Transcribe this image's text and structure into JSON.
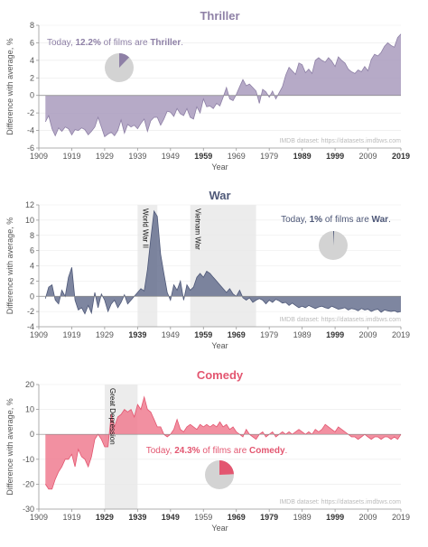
{
  "chart_data": [
    {
      "type": "area",
      "title": "Thriller",
      "color": "#a99bbd",
      "stroke": "#8e80a6",
      "xlabel": "Year",
      "ylabel": "Difference with average, %",
      "xlim": [
        1909,
        2019
      ],
      "ylim": [
        -6,
        8
      ],
      "xticks": [
        1909,
        1919,
        1929,
        1939,
        1949,
        1959,
        1969,
        1979,
        1989,
        1999,
        2009,
        2019
      ],
      "xticks_bold": [
        1959,
        1989,
        1999,
        2019
      ],
      "yticks": [
        -6,
        -4,
        -2,
        0,
        2,
        4,
        6,
        8
      ],
      "credit": "IMDB dataset: https://datasets.imdbws.com",
      "annotation": {
        "prefix": "Today, ",
        "pct": "12.2%",
        "middle": " of films are ",
        "genre": "Thriller",
        "suffix": "."
      },
      "pie_fraction": 0.122,
      "bands": [],
      "x": [
        1911,
        1912,
        1913,
        1914,
        1915,
        1916,
        1917,
        1918,
        1919,
        1920,
        1921,
        1922,
        1923,
        1924,
        1925,
        1926,
        1927,
        1928,
        1929,
        1930,
        1931,
        1932,
        1933,
        1934,
        1935,
        1936,
        1937,
        1938,
        1939,
        1940,
        1941,
        1942,
        1943,
        1944,
        1945,
        1946,
        1947,
        1948,
        1949,
        1950,
        1951,
        1952,
        1953,
        1954,
        1955,
        1956,
        1957,
        1958,
        1959,
        1960,
        1961,
        1962,
        1963,
        1964,
        1965,
        1966,
        1967,
        1968,
        1969,
        1970,
        1971,
        1972,
        1973,
        1974,
        1975,
        1976,
        1977,
        1978,
        1979,
        1980,
        1981,
        1982,
        1983,
        1984,
        1985,
        1986,
        1987,
        1988,
        1989,
        1990,
        1991,
        1992,
        1993,
        1994,
        1995,
        1996,
        1997,
        1998,
        1999,
        2000,
        2001,
        2002,
        2003,
        2004,
        2005,
        2006,
        2007,
        2008,
        2009,
        2010,
        2011,
        2012,
        2013,
        2014,
        2015,
        2016,
        2017,
        2018,
        2019
      ],
      "values": [
        -3.0,
        -2.3,
        -3.8,
        -4.6,
        -3.7,
        -4.1,
        -3.6,
        -3.8,
        -4.5,
        -3.9,
        -4.0,
        -3.7,
        -3.9,
        -4.5,
        -4.1,
        -3.6,
        -2.5,
        -3.6,
        -4.7,
        -4.4,
        -4.2,
        -4.6,
        -4.0,
        -2.8,
        -4.3,
        -3.3,
        -3.6,
        -3.4,
        -3.8,
        -3.2,
        -2.7,
        -4.1,
        -2.9,
        -2.5,
        -2.5,
        -3.4,
        -2.7,
        -1.8,
        -1.9,
        -2.4,
        -1.5,
        -2.1,
        -2.3,
        -1.5,
        -2.5,
        -2.7,
        -1.3,
        -2.0,
        -0.4,
        -1.3,
        -1.2,
        -1.5,
        -0.9,
        -1.2,
        -0.2,
        0.9,
        -0.4,
        -0.6,
        0.1,
        1.0,
        1.8,
        1.1,
        1.3,
        0.9,
        0.5,
        -0.9,
        0.7,
        0.4,
        -0.2,
        0.5,
        -0.4,
        0.3,
        1.0,
        2.3,
        3.2,
        2.8,
        2.4,
        3.7,
        3.5,
        2.6,
        3.0,
        2.5,
        4.0,
        4.3,
        4.0,
        3.8,
        4.3,
        3.9,
        3.3,
        4.4,
        4.0,
        3.7,
        3.0,
        2.7,
        2.5,
        2.9,
        2.7,
        3.3,
        2.8,
        4.1,
        4.7,
        4.5,
        4.9,
        5.6,
        6.0,
        5.7,
        5.5,
        6.6,
        7.0
      ]
    },
    {
      "type": "area",
      "title": "War",
      "color": "#67718f",
      "stroke": "#4e5878",
      "xlabel": "Year",
      "ylabel": "Difference with average, %",
      "xlim": [
        1909,
        2019
      ],
      "ylim": [
        -4,
        12
      ],
      "xticks": [
        1909,
        1919,
        1929,
        1939,
        1949,
        1959,
        1969,
        1979,
        1989,
        1999,
        2009,
        2019
      ],
      "xticks_bold": [
        1939,
        1959,
        1969,
        1999
      ],
      "yticks": [
        -4,
        -2,
        0,
        2,
        4,
        6,
        8,
        10,
        12
      ],
      "credit": "IMDB dataset: https://datasets.imdbws.com",
      "annotation": {
        "prefix": "Today, ",
        "pct": "1%",
        "middle": " of films are ",
        "genre": "War",
        "suffix": "."
      },
      "pie_fraction": 0.01,
      "bands": [
        {
          "label": "World War II",
          "start": 1939,
          "end": 1945
        },
        {
          "label": "Vietnam War",
          "start": 1955,
          "end": 1975
        }
      ],
      "x": [
        1911,
        1912,
        1913,
        1914,
        1915,
        1916,
        1917,
        1918,
        1919,
        1920,
        1921,
        1922,
        1923,
        1924,
        1925,
        1926,
        1927,
        1928,
        1929,
        1930,
        1931,
        1932,
        1933,
        1934,
        1935,
        1936,
        1937,
        1938,
        1939,
        1940,
        1941,
        1942,
        1943,
        1944,
        1945,
        1946,
        1947,
        1948,
        1949,
        1950,
        1951,
        1952,
        1953,
        1954,
        1955,
        1956,
        1957,
        1958,
        1959,
        1960,
        1961,
        1962,
        1963,
        1964,
        1965,
        1966,
        1967,
        1968,
        1969,
        1970,
        1971,
        1972,
        1973,
        1974,
        1975,
        1976,
        1977,
        1978,
        1979,
        1980,
        1981,
        1982,
        1983,
        1984,
        1985,
        1986,
        1987,
        1988,
        1989,
        1990,
        1991,
        1992,
        1993,
        1994,
        1995,
        1996,
        1997,
        1998,
        1999,
        2000,
        2001,
        2002,
        2003,
        2004,
        2005,
        2006,
        2007,
        2008,
        2009,
        2010,
        2011,
        2012,
        2013,
        2014,
        2015,
        2016,
        2017,
        2018,
        2019
      ],
      "values": [
        -0.3,
        1.2,
        1.5,
        -0.5,
        -1.0,
        0.8,
        0.0,
        2.5,
        3.8,
        -0.5,
        -1.8,
        -1.5,
        -2.3,
        -1.2,
        -2.2,
        0.5,
        -1.5,
        0.3,
        -0.5,
        -2.0,
        -1.0,
        -0.5,
        -1.5,
        -0.8,
        0.2,
        -1.0,
        -0.5,
        0.0,
        0.5,
        1.0,
        0.7,
        3.5,
        7.5,
        11.2,
        10.5,
        5.5,
        3.0,
        0.5,
        -0.5,
        1.5,
        0.8,
        2.0,
        -0.5,
        1.5,
        0.8,
        1.2,
        2.5,
        3.0,
        2.5,
        3.3,
        3.0,
        2.5,
        2.0,
        1.5,
        1.0,
        0.5,
        1.0,
        0.3,
        0.0,
        0.8,
        -0.2,
        -0.5,
        -0.2,
        -0.8,
        -0.5,
        -0.3,
        -0.5,
        -1.0,
        -0.5,
        -0.8,
        -0.4,
        -0.6,
        -0.9,
        -0.8,
        -1.2,
        -0.9,
        -1.2,
        -1.5,
        -1.3,
        -1.5,
        -1.2,
        -1.4,
        -1.6,
        -1.4,
        -1.3,
        -1.5,
        -1.6,
        -1.3,
        -1.5,
        -1.7,
        -1.6,
        -1.5,
        -1.8,
        -1.6,
        -1.7,
        -1.9,
        -1.6,
        -1.8,
        -1.7,
        -2.0,
        -1.8,
        -1.7,
        -2.1,
        -1.8,
        -1.9,
        -2.0,
        -1.9,
        -2.1,
        -2.0
      ]
    },
    {
      "type": "area",
      "title": "Comedy",
      "color": "#f07c90",
      "stroke": "#e35670",
      "xlabel": "Year",
      "ylabel": "Difference with average, %",
      "xlim": [
        1909,
        2019
      ],
      "ylim": [
        -30,
        20
      ],
      "xticks": [
        1909,
        1919,
        1929,
        1939,
        1949,
        1959,
        1969,
        1979,
        1989,
        1999,
        2009,
        2019
      ],
      "xticks_bold": [
        1929,
        1939,
        1949,
        1969,
        1979,
        1999
      ],
      "yticks": [
        -30,
        -20,
        -10,
        0,
        10,
        20
      ],
      "credit": "IMDB dataset: https://datasets.imdbws.com",
      "annotation": {
        "prefix": "Today, ",
        "pct": "24.3%",
        "middle": " of films are ",
        "genre": "Comedy",
        "suffix": "."
      },
      "pie_fraction": 0.243,
      "bands": [
        {
          "label": "Great Depression",
          "start": 1929,
          "end": 1939
        }
      ],
      "x": [
        1911,
        1912,
        1913,
        1914,
        1915,
        1916,
        1917,
        1918,
        1919,
        1920,
        1921,
        1922,
        1923,
        1924,
        1925,
        1926,
        1927,
        1928,
        1929,
        1930,
        1931,
        1932,
        1933,
        1934,
        1935,
        1936,
        1937,
        1938,
        1939,
        1940,
        1941,
        1942,
        1943,
        1944,
        1945,
        1946,
        1947,
        1948,
        1949,
        1950,
        1951,
        1952,
        1953,
        1954,
        1955,
        1956,
        1957,
        1958,
        1959,
        1960,
        1961,
        1962,
        1963,
        1964,
        1965,
        1966,
        1967,
        1968,
        1969,
        1970,
        1971,
        1972,
        1973,
        1974,
        1975,
        1976,
        1977,
        1978,
        1979,
        1980,
        1981,
        1982,
        1983,
        1984,
        1985,
        1986,
        1987,
        1988,
        1989,
        1990,
        1991,
        1992,
        1993,
        1994,
        1995,
        1996,
        1997,
        1998,
        1999,
        2000,
        2001,
        2002,
        2003,
        2004,
        2005,
        2006,
        2007,
        2008,
        2009,
        2010,
        2011,
        2012,
        2013,
        2014,
        2015,
        2016,
        2017,
        2018,
        2019
      ],
      "values": [
        -20,
        -22,
        -22,
        -18,
        -15,
        -13,
        -10,
        -10,
        -8,
        -13,
        -6,
        -9,
        -10,
        -13,
        -9,
        -2,
        0,
        -2,
        -5,
        -5,
        8,
        3,
        7,
        8,
        10,
        9,
        10,
        7,
        12,
        10,
        15,
        10,
        9,
        6,
        3,
        3,
        0,
        -1,
        0,
        2,
        6,
        2,
        1,
        3,
        4,
        3,
        2,
        4,
        3,
        4,
        3,
        4,
        3,
        5,
        3,
        4,
        2,
        3,
        1,
        0,
        -1,
        2,
        0,
        -1,
        -2,
        0,
        1,
        -1,
        0,
        1,
        -1,
        0,
        1,
        0,
        1,
        0,
        1,
        2,
        1,
        0,
        1,
        0,
        2,
        1,
        2,
        4,
        3,
        2,
        1,
        3,
        2,
        1,
        0,
        -1,
        -1,
        -2,
        -1,
        0,
        -1,
        -2,
        -1,
        -1,
        -2,
        -1,
        -1,
        -2,
        -1,
        -2,
        0
      ]
    }
  ]
}
